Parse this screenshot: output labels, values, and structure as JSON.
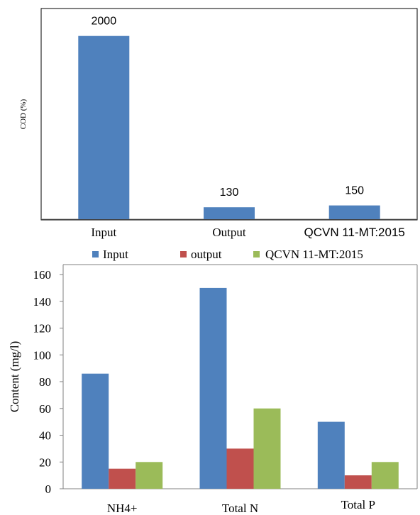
{
  "colors": {
    "input": "#4F81BD",
    "output": "#C0504D",
    "standard": "#9BBB59",
    "axis": "#808080",
    "frame": "#000000"
  },
  "chart_data": [
    {
      "type": "bar",
      "ylabel": "COD (%)",
      "categories": [
        "Input",
        "Output",
        "QCVN 11-MT:2015"
      ],
      "values": [
        2000,
        130,
        150
      ],
      "data_labels": [
        "2000",
        "130",
        "150"
      ],
      "ylim": [
        0,
        2300
      ],
      "grid": false,
      "legend": "none"
    },
    {
      "type": "bar",
      "ylabel": "Content (mg/l)",
      "categories": [
        "NH4+",
        "Total N",
        "Total P"
      ],
      "series": [
        {
          "name": "Input",
          "values": [
            86,
            150,
            50
          ]
        },
        {
          "name": "output",
          "values": [
            15,
            30,
            10
          ]
        },
        {
          "name": "QCVN 11-MT:2015",
          "values": [
            20,
            60,
            20
          ]
        }
      ],
      "yticks": [
        "0",
        "20",
        "40",
        "60",
        "80",
        "100",
        "120",
        "140",
        "160"
      ],
      "ylim": [
        0,
        160
      ],
      "grid": false,
      "legend": "top"
    }
  ]
}
